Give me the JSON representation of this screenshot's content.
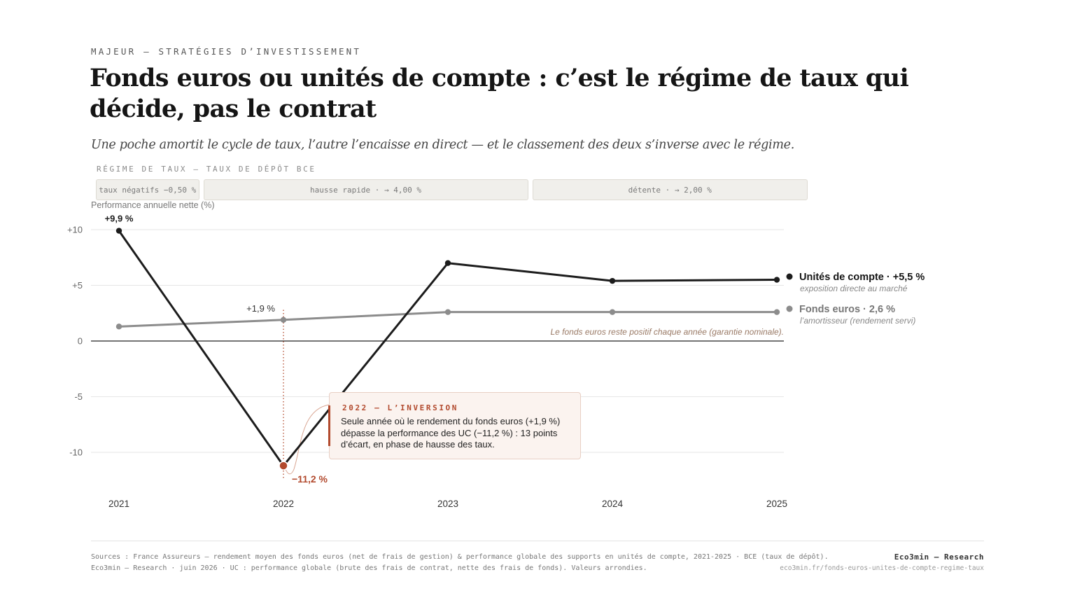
{
  "header": {
    "kicker": "MAJEUR — STRATÉGIES D’INVESTISSEMENT",
    "title": "Fonds euros ou unités de compte : c’est le régime de taux qui décide, pas le contrat",
    "subtitle": "Une poche amortit le cycle de taux, l’autre l’encaisse en direct — et le classement des deux s’inverse avec le régime."
  },
  "regime": {
    "label": "RÉGIME DE TAUX — TAUX DE DÉPÔT BCE",
    "bands": [
      {
        "label": "taux négatifs −0,50 %",
        "from": 2021,
        "to": 2021.5
      },
      {
        "label": "hausse rapide · → 4,00 %",
        "from": 2021.5,
        "to": 2023.5
      },
      {
        "label": "détente · → 2,00 %",
        "from": 2023.5,
        "to": 2025.2
      }
    ]
  },
  "chart_data": {
    "type": "line",
    "ylabel": "Performance annuelle nette (%)",
    "x": [
      2021,
      2022,
      2023,
      2024,
      2025
    ],
    "x_tick_labels": [
      "2021",
      "2022",
      "2023",
      "2024",
      "2025"
    ],
    "ylim": [
      -13,
      10.5
    ],
    "y_ticks": [
      10,
      5,
      0,
      -5,
      -10
    ],
    "y_tick_labels": [
      "+10",
      "+5",
      "0",
      "-5",
      "-10"
    ],
    "grid": true,
    "series": [
      {
        "name": "Unités de compte",
        "end_label": "Unités de compte · +5,5 %",
        "sub_label": "exposition directe au marché",
        "color": "#1c1c1c",
        "values": [
          9.9,
          -11.2,
          7.0,
          5.4,
          5.5
        ]
      },
      {
        "name": "Fonds euros",
        "end_label": "Fonds euros · 2,6 %",
        "sub_label": "l’amortisseur (rendement servi)",
        "color": "#8c8c8c",
        "values": [
          1.3,
          1.9,
          2.6,
          2.6,
          2.6
        ]
      }
    ],
    "point_labels": [
      {
        "series": 0,
        "index": 0,
        "text": "+9,9 %"
      },
      {
        "series": 1,
        "index": 1,
        "text": "+1,9 %"
      },
      {
        "series": 0,
        "index": 1,
        "text": "−11,2 %"
      }
    ],
    "zero_note": "Le fonds euros reste positif chaque année (garantie nominale).",
    "highlight_color": "#b24a2e"
  },
  "annotation": {
    "title": "2022 — L’INVERSION",
    "text": "Seule année où le rendement du fonds euros (+1,9 %) dépasse la performance des UC (−11,2 %) : 13 points d’écart, en phase de hausse des taux."
  },
  "footer": {
    "sources": "Sources : France Assureurs — rendement moyen des fonds euros (net de frais de gestion) & performance globale des supports en unités de compte, 2021-2025 · BCE (taux de dépôt).",
    "notes": "Eco3min — Research · juin 2026 · UC : performance globale (brute des frais de contrat, nette des frais de fonds). Valeurs arrondies.",
    "brand": "Eco3min — Research",
    "url": "eco3min.fr/fonds-euros-unites-de-compte-regime-taux"
  }
}
